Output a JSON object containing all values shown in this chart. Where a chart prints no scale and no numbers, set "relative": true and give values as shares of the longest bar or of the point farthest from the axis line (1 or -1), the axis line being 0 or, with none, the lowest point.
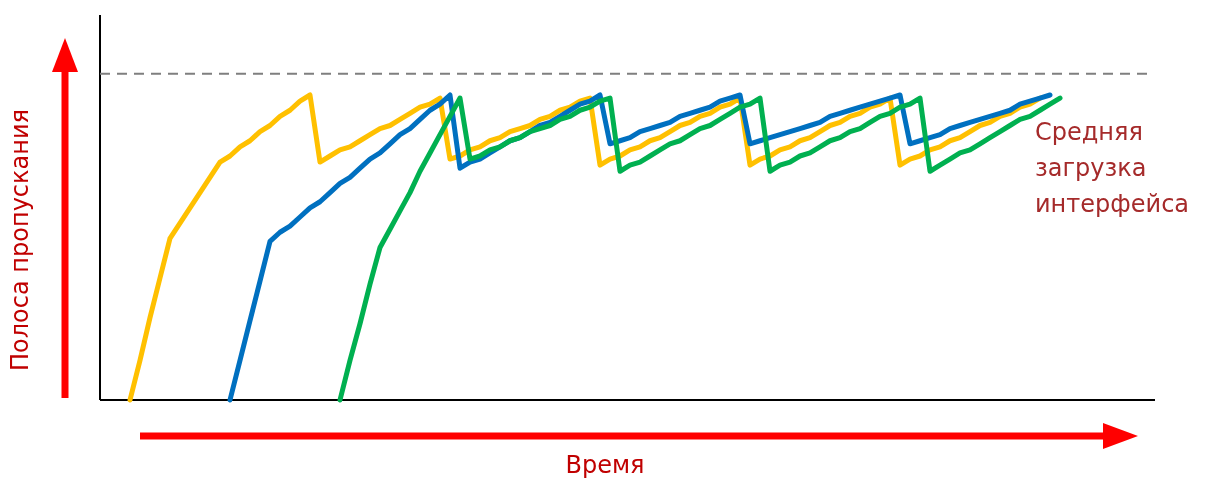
{
  "chart_data": {
    "type": "line",
    "relative": true,
    "xlabel": "Время",
    "ylabel": "Полоса пропускания",
    "line_style": "solid",
    "marker": "none",
    "categories": [
      null,
      null,
      null,
      null,
      null,
      null,
      null,
      null,
      null,
      null,
      null,
      null,
      null,
      null,
      null,
      null,
      null,
      null,
      null,
      null,
      null,
      null,
      null,
      null,
      null,
      null,
      null,
      null,
      null,
      null,
      null,
      null,
      null,
      null,
      null,
      null,
      null,
      null,
      null,
      null,
      null,
      null,
      null,
      null,
      null,
      null,
      null,
      null,
      null,
      null,
      null,
      null,
      null,
      null,
      null,
      null,
      null,
      null,
      null,
      null,
      null,
      null,
      null,
      null,
      null,
      null,
      null,
      null,
      null,
      null,
      null,
      null,
      null,
      null,
      null,
      null,
      null,
      null,
      null,
      null,
      null,
      null,
      null,
      null,
      null,
      null,
      null,
      null,
      null,
      null,
      null,
      null,
      null,
      null,
      null,
      null,
      null,
      null,
      null,
      null,
      null,
      null,
      null,
      null,
      null,
      null
    ],
    "annotations": [
      "Средняя загрузка интерфейса"
    ],
    "ref_lines": [
      {
        "axis": "y",
        "value": 1.07,
        "color": "#7f7f7f",
        "line_style": "dashed"
      }
    ],
    "series": [
      {
        "color": "#ffc000",
        "values": [
          null,
          null,
          null,
          0,
          0.13,
          0.27,
          0.4,
          0.53,
          0.58,
          0.63,
          0.68,
          0.73,
          0.78,
          0.8,
          0.83,
          0.85,
          0.88,
          0.9,
          0.93,
          0.95,
          0.98,
          1,
          0.78,
          0.8,
          0.82,
          0.83,
          0.85,
          0.87,
          0.89,
          0.9,
          0.92,
          0.94,
          0.96,
          0.97,
          0.99,
          0.79,
          0.8,
          0.82,
          0.83,
          0.85,
          0.86,
          0.88,
          0.89,
          0.9,
          0.92,
          0.93,
          0.95,
          0.96,
          0.98,
          0.99,
          0.77,
          0.79,
          0.8,
          0.82,
          0.83,
          0.85,
          0.86,
          0.88,
          0.9,
          0.91,
          0.93,
          0.94,
          0.96,
          0.97,
          0.99,
          0.77,
          0.79,
          0.8,
          0.82,
          0.83,
          0.85,
          0.86,
          0.88,
          0.9,
          0.91,
          0.93,
          0.94,
          0.96,
          0.97,
          0.99,
          0.77,
          0.79,
          0.8,
          0.82,
          0.83,
          0.85,
          0.86,
          0.88,
          0.9,
          0.91,
          0.93,
          0.94,
          0.96,
          0.97,
          0.99,
          null,
          null,
          null,
          null,
          null,
          null,
          null,
          null,
          null,
          null,
          null
        ]
      },
      {
        "color": "#0070c0",
        "values": [
          null,
          null,
          null,
          null,
          null,
          null,
          null,
          null,
          null,
          null,
          null,
          null,
          null,
          0,
          0.13,
          0.26,
          0.39,
          0.52,
          0.55,
          0.57,
          0.6,
          0.63,
          0.65,
          0.68,
          0.71,
          0.73,
          0.76,
          0.79,
          0.81,
          0.84,
          0.87,
          0.89,
          0.92,
          0.95,
          0.97,
          1,
          0.76,
          0.78,
          0.79,
          0.81,
          0.83,
          0.85,
          0.86,
          0.88,
          0.9,
          0.91,
          0.93,
          0.95,
          0.97,
          0.98,
          1,
          0.84,
          0.85,
          0.86,
          0.88,
          0.89,
          0.9,
          0.91,
          0.93,
          0.94,
          0.95,
          0.96,
          0.98,
          0.99,
          1,
          0.84,
          0.85,
          0.86,
          0.87,
          0.88,
          0.89,
          0.9,
          0.91,
          0.93,
          0.94,
          0.95,
          0.96,
          0.97,
          0.98,
          0.99,
          1,
          0.84,
          0.85,
          0.86,
          0.87,
          0.89,
          0.9,
          0.91,
          0.92,
          0.93,
          0.94,
          0.95,
          0.97,
          0.98,
          0.99,
          1,
          null,
          null,
          null,
          null,
          null,
          null,
          null,
          null,
          null,
          null
        ]
      },
      {
        "color": "#00b050",
        "values": [
          null,
          null,
          null,
          null,
          null,
          null,
          null,
          null,
          null,
          null,
          null,
          null,
          null,
          null,
          null,
          null,
          null,
          null,
          null,
          null,
          null,
          null,
          null,
          null,
          0,
          0.13,
          0.25,
          0.38,
          0.5,
          0.56,
          0.62,
          0.68,
          0.75,
          0.81,
          0.87,
          0.93,
          0.99,
          0.79,
          0.8,
          0.82,
          0.83,
          0.85,
          0.86,
          0.88,
          0.89,
          0.9,
          0.92,
          0.93,
          0.95,
          0.96,
          0.98,
          0.99,
          0.75,
          0.77,
          0.78,
          0.8,
          0.82,
          0.84,
          0.85,
          0.87,
          0.89,
          0.9,
          0.92,
          0.94,
          0.96,
          0.97,
          0.99,
          0.75,
          0.77,
          0.78,
          0.8,
          0.81,
          0.83,
          0.85,
          0.86,
          0.88,
          0.89,
          0.91,
          0.93,
          0.94,
          0.96,
          0.97,
          0.99,
          0.75,
          0.77,
          0.79,
          0.81,
          0.82,
          0.84,
          0.86,
          0.88,
          0.9,
          0.92,
          0.93,
          0.95,
          0.97,
          0.99,
          null,
          null,
          null,
          null,
          null,
          null,
          null,
          null,
          null
        ]
      }
    ]
  }
}
